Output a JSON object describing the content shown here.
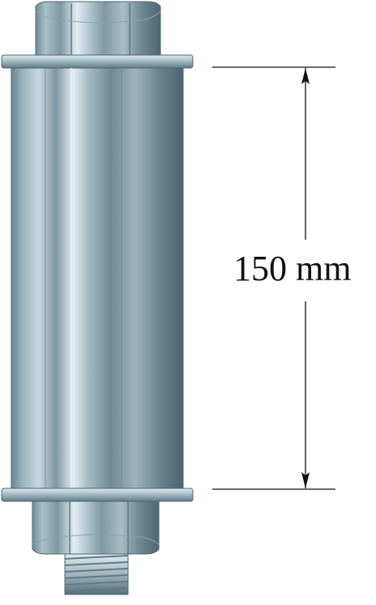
{
  "dimension": {
    "label": "150 mm"
  },
  "colors": {
    "steel_light": "#d6e2e7",
    "steel_mid": "#9fb4bd",
    "steel_dark": "#5f7b87",
    "line": "#111111"
  }
}
